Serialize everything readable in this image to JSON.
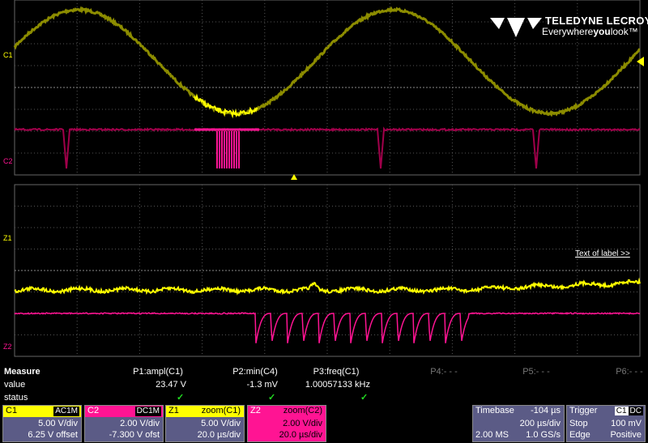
{
  "logo": {
    "brand": "TELEDYNE LECROY",
    "tagline": [
      "Everywhere",
      "you",
      "look™"
    ]
  },
  "trace_labels": {
    "top": [
      "C1",
      "C2"
    ],
    "bottom": [
      "Z1",
      "Z2"
    ]
  },
  "label_text": "Text of label >>",
  "measure": {
    "title": "Measure",
    "rows": [
      "value",
      "status"
    ],
    "params": [
      {
        "name": "P1:ampl(C1)",
        "value": "23.47 V",
        "status": "✓"
      },
      {
        "name": "P2:min(C4)",
        "value": "-1.3 mV",
        "status": "✓"
      },
      {
        "name": "P3:freq(C1)",
        "value": "1.00057133 kHz",
        "status": "✓"
      },
      {
        "name": "P4:- - -"
      },
      {
        "name": "P5:- - -"
      },
      {
        "name": "P6:- - -"
      }
    ]
  },
  "channels": [
    {
      "name": "C1",
      "coupling": "AC1M",
      "scale": "5.00 V/div",
      "offset": "6.25 V offset"
    },
    {
      "name": "C2",
      "coupling": "DC1M",
      "scale": "2.00 V/div",
      "offset": "-7.300 V ofst"
    },
    {
      "name": "Z1",
      "source": "zoom(C1)",
      "scale": "5.00 V/div",
      "time": "20.0 µs/div"
    },
    {
      "name": "Z2",
      "source": "zoom(C2)",
      "scale": "2.00 V/div",
      "time": "20.0 µs/div"
    }
  ],
  "timebase": {
    "title": "Timebase",
    "delay": "-104 µs",
    "scale": "200 µs/div",
    "samples": "2.00 MS",
    "rate": "1.0 GS/s"
  },
  "trigger": {
    "title": "Trigger",
    "source": "C1",
    "coupling": "DC",
    "mode": "Stop",
    "level": "100 mV",
    "type": "Edge",
    "slope": "Positive"
  }
}
